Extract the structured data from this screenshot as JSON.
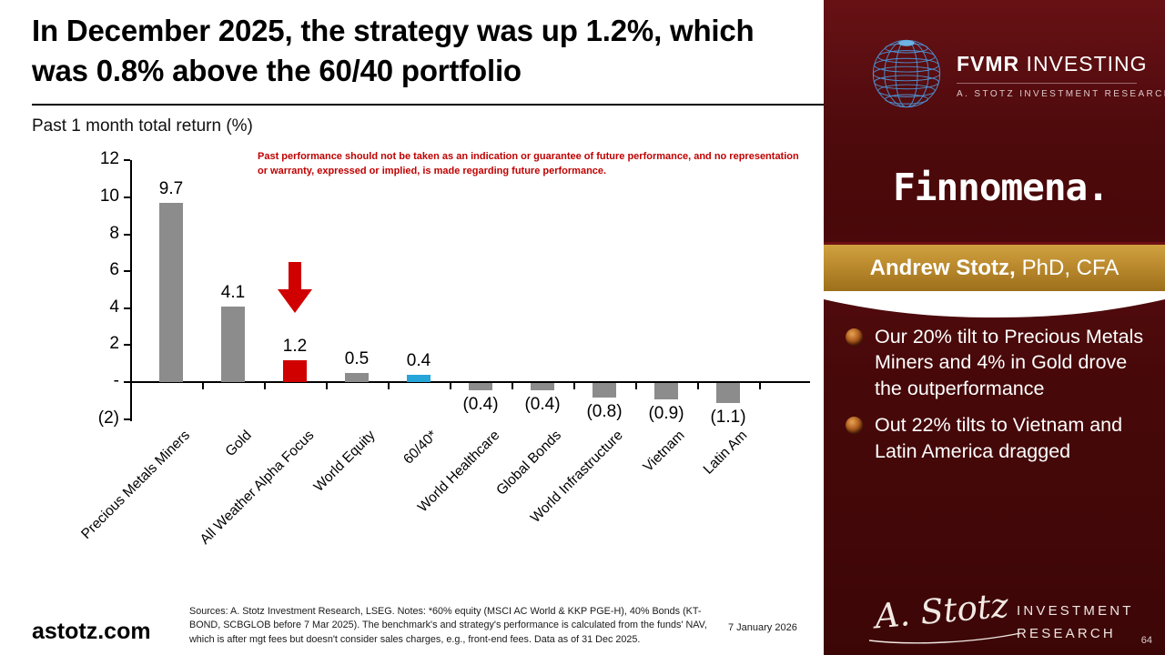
{
  "slide": {
    "title": "In December 2025, the strategy was up 1.2%, which was 0.8% above the 60/40 portfolio",
    "disclaimer": "Past performance should not be taken as an indication or guarantee of future performance, and no representation or warranty, expressed or implied, is made regarding future performance.",
    "sources_note": "Sources: A. Stotz Investment Research, LSEG. Notes: *60% equity (MSCI AC World & KKP PGE-H), 40% Bonds (KT-BOND, SCBGLOB before 7 Mar 2025). The benchmark's and strategy's performance is calculated from the funds' NAV, which is after mgt fees but doesn't consider sales charges, e.g., front-end fees. Data as of 31 Dec 2025.",
    "website": "astotz.com",
    "date": "7 January 2026",
    "page_number": "64"
  },
  "chart_data": {
    "type": "bar",
    "title": "Past 1 month total return (%)",
    "categories": [
      "Precious Metals Miners",
      "Gold",
      "All Weather Alpha Focus",
      "World Equity",
      "60/40*",
      "World Healthcare",
      "Global Bonds",
      "World Infrastructure",
      "Vietnam",
      "Latin Am"
    ],
    "values": [
      9.7,
      4.1,
      1.2,
      0.5,
      0.4,
      -0.4,
      -0.4,
      -0.8,
      -0.9,
      -1.1
    ],
    "value_labels": [
      "9.7",
      "4.1",
      "1.2",
      "0.5",
      "0.4",
      "(0.4)",
      "(0.4)",
      "(0.8)",
      "(0.9)",
      "(1.1)"
    ],
    "bar_colors": [
      "gray",
      "gray",
      "red",
      "gray",
      "blue",
      "gray",
      "gray",
      "gray",
      "gray",
      "gray"
    ],
    "colors": {
      "gray": "#8C8C8C",
      "red": "#D00000",
      "blue": "#25A5D8"
    },
    "ylim": [
      -2,
      12
    ],
    "yticks_values": [
      12,
      10,
      8,
      6,
      4,
      2,
      0,
      -2
    ],
    "yticks_labels": [
      "12",
      "10",
      "8",
      "6",
      "4",
      "2",
      "-",
      "(2)"
    ],
    "grid": false,
    "legend": "none",
    "annotation": "red arrow pointing down at All Weather Alpha Focus bar",
    "highlight_index": 2
  },
  "sidebar": {
    "brand": {
      "primary_bold": "FVMR",
      "primary_rest": " INVESTING",
      "secondary": "A. STOTZ INVESTMENT RESEARCH"
    },
    "partner_logo": "Finnomena.",
    "author_banner": {
      "bold": "Andrew Stotz,",
      "rest": "PhD, CFA"
    },
    "bullets": [
      {
        "text": "Our 20% tilt to Precious Metals Miners and 4% in Gold drove the outperformance"
      },
      {
        "text": "Out 22% tilts to Vietnam and Latin America dragged"
      }
    ],
    "footer": {
      "signature": "A. Stotz",
      "org_line1": "INVESTMENT",
      "org_line2": "RESEARCH"
    }
  }
}
